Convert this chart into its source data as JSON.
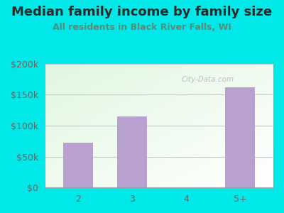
{
  "title": "Median family income by family size",
  "subtitle": "All residents in Black River Falls, WI",
  "categories": [
    "2",
    "3",
    "4",
    "5+"
  ],
  "values": [
    72000,
    115000,
    0,
    162000
  ],
  "bar_color": "#b8a0d0",
  "ylim": [
    0,
    200000
  ],
  "yticks": [
    0,
    50000,
    100000,
    150000,
    200000
  ],
  "ytick_labels": [
    "$0",
    "$50k",
    "$100k",
    "$150k",
    "$200k"
  ],
  "bg_outer": "#00e8e8",
  "title_color": "#2a2a2a",
  "subtitle_color": "#5a8a7a",
  "tick_color": "#666666",
  "grid_color": "#cccccc",
  "watermark_text": "City-Data.com",
  "title_fontsize": 13,
  "subtitle_fontsize": 9,
  "tick_fontsize": 9
}
